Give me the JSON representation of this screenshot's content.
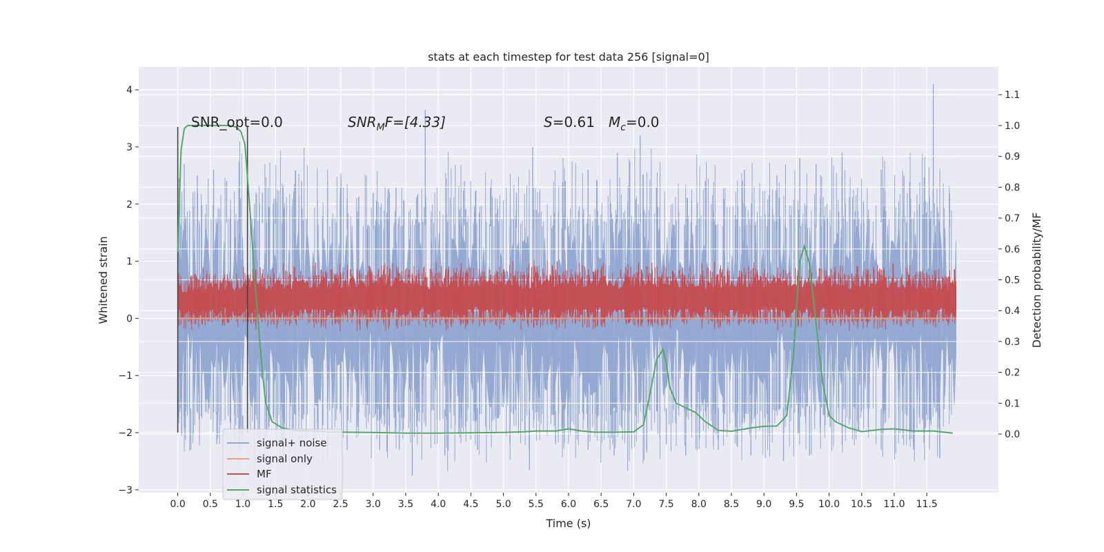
{
  "chart_data": {
    "type": "line",
    "title": "stats at each timestep for test data 256 [signal=0]",
    "xlabel": "Time (s)",
    "ylabel": "Whitened strain",
    "ylabel_right": "Detection probability/MF",
    "xlim": [
      -0.6,
      12.6
    ],
    "ylim": [
      -3.05,
      4.4
    ],
    "ylim_right": [
      -0.19,
      1.19
    ],
    "x_ticks": [
      "0.0",
      "0.5",
      "1.0",
      "1.5",
      "2.0",
      "2.5",
      "3.0",
      "3.5",
      "4.0",
      "4.5",
      "5.0",
      "5.5",
      "6.0",
      "6.5",
      "7.0",
      "7.5",
      "8.0",
      "8.5",
      "9.0",
      "9.5",
      "10.0",
      "10.5",
      "11.0",
      "11.5"
    ],
    "y_ticks": [
      "−3",
      "−2",
      "−1",
      "0",
      "1",
      "2",
      "3",
      "4"
    ],
    "y_ticks_right": [
      "0.0",
      "0.1",
      "0.2",
      "0.3",
      "0.4",
      "0.5",
      "0.6",
      "0.7",
      "0.8",
      "0.9",
      "1.0",
      "1.1"
    ],
    "grid": true,
    "legend_position": "lower-left",
    "annotations": {
      "snr_opt": "SNR_opt=0.0",
      "snr_mf": "SNR",
      "snr_mf_sub": "M",
      "snr_mf_rest": "F=[4.33]",
      "s_label": "S",
      "s_rest": "=0.61",
      "mc_label": "M",
      "mc_sub": "c",
      "mc_rest": "=0.0"
    },
    "vertical_markers": [
      0.0,
      1.07
    ],
    "series": [
      {
        "name": "signal+ noise",
        "color": "#92a8d1",
        "x_range": [
          0.0,
          11.95
        ],
        "band_ymin": [
          -1.55,
          -1.7,
          -1.6,
          -1.5,
          -1.6,
          -1.55,
          -1.65,
          -1.6,
          -1.55,
          -1.6,
          -1.5,
          -1.6,
          -1.55
        ],
        "band_ymax": [
          1.6,
          1.7,
          1.6,
          1.55,
          1.65,
          1.6,
          1.55,
          1.7,
          1.6,
          1.55,
          1.6,
          1.7,
          1.6
        ],
        "peaks_x": [
          0.1,
          0.3,
          0.55,
          0.75,
          0.95,
          1.3,
          1.5,
          1.9,
          2.3,
          2.6,
          3.0,
          3.35,
          3.8,
          4.4,
          4.8,
          5.2,
          5.45,
          5.95,
          6.3,
          6.75,
          7.1,
          7.35,
          8.1,
          8.7,
          9.2,
          9.55,
          9.8,
          10.2,
          10.8,
          11.15,
          11.6,
          11.85
        ],
        "peaks_y": [
          2.7,
          2.5,
          2.6,
          2.4,
          2.3,
          2.2,
          2.1,
          2.4,
          2.4,
          2.1,
          2.2,
          2.3,
          3.65,
          2.4,
          2.3,
          2.2,
          3.0,
          2.4,
          2.6,
          2.9,
          3.2,
          2.3,
          2.4,
          2.6,
          2.5,
          2.8,
          2.7,
          2.9,
          2.6,
          2.5,
          4.1,
          2.2
        ],
        "troughs_x": [
          0.2,
          0.6,
          1.0,
          1.6,
          2.1,
          2.6,
          3.1,
          3.4,
          3.6,
          4.1,
          4.6,
          5.1,
          5.4,
          5.8,
          6.3,
          6.7,
          7.2,
          7.5,
          7.8,
          8.3,
          8.8,
          9.3,
          9.7,
          10.2,
          10.8,
          11.3,
          11.7
        ],
        "troughs_y": [
          -2.3,
          -2.2,
          -2.1,
          -2.2,
          -2.1,
          -2.3,
          -2.3,
          -2.3,
          -2.75,
          -2.4,
          -2.3,
          -2.2,
          -2.65,
          -2.2,
          -2.3,
          -2.4,
          -2.3,
          -2.2,
          -2.4,
          -2.3,
          -2.4,
          -2.5,
          -2.4,
          -2.2,
          -2.3,
          -2.3,
          -2.45
        ]
      },
      {
        "name": "signal only",
        "color": "#e8a07e",
        "x": [
          0.0,
          11.95
        ],
        "y": [
          0.0,
          0.0
        ]
      },
      {
        "name": "MF",
        "color": "#c44e52",
        "x_range": [
          0.0,
          11.95
        ],
        "band_ymin": [
          0.0,
          0.02,
          0.0,
          0.02,
          0.0,
          0.01,
          0.0,
          0.02,
          0.0,
          0.01,
          0.0,
          0.02,
          0.0
        ],
        "band_ymax": [
          0.6,
          0.65,
          0.7,
          0.75,
          0.7,
          0.7,
          0.75,
          0.7,
          0.7,
          0.72,
          0.7,
          0.7,
          0.65
        ],
        "peaks_x": [
          0.55,
          1.2,
          2.2,
          2.65,
          3.55,
          4.9,
          5.5,
          6.8,
          7.7,
          8.35,
          9.3,
          10.8,
          11.5
        ],
        "peaks_y": [
          0.75,
          0.85,
          0.85,
          0.85,
          0.85,
          0.8,
          0.8,
          0.85,
          0.85,
          0.8,
          0.85,
          0.85,
          0.8
        ]
      },
      {
        "name": "signal statistics",
        "color": "#55a868",
        "axis": "right",
        "x": [
          0.0,
          0.05,
          0.1,
          0.15,
          0.25,
          0.4,
          0.6,
          0.8,
          0.9,
          0.97,
          1.03,
          1.1,
          1.2,
          1.3,
          1.35,
          1.45,
          1.6,
          1.8,
          2.0,
          2.3,
          2.6,
          3.0,
          3.5,
          4.0,
          4.5,
          5.0,
          5.3,
          5.5,
          5.8,
          6.0,
          6.2,
          6.4,
          6.7,
          7.0,
          7.15,
          7.25,
          7.35,
          7.45,
          7.5,
          7.55,
          7.65,
          7.8,
          7.95,
          8.1,
          8.3,
          8.5,
          8.8,
          9.0,
          9.2,
          9.35,
          9.45,
          9.55,
          9.62,
          9.7,
          9.8,
          9.9,
          10.0,
          10.1,
          10.3,
          10.5,
          10.8,
          11.0,
          11.3,
          11.6,
          11.9
        ],
        "y": [
          0.59,
          0.92,
          0.99,
          1.0,
          1.0,
          1.0,
          1.0,
          1.0,
          0.995,
          0.98,
          0.94,
          0.75,
          0.45,
          0.2,
          0.1,
          0.04,
          0.02,
          0.012,
          0.011,
          0.007,
          0.006,
          0.005,
          0.003,
          0.003,
          0.004,
          0.005,
          0.007,
          0.01,
          0.01,
          0.017,
          0.01,
          0.006,
          0.006,
          0.007,
          0.03,
          0.13,
          0.24,
          0.275,
          0.23,
          0.155,
          0.1,
          0.085,
          0.07,
          0.04,
          0.012,
          0.009,
          0.02,
          0.025,
          0.026,
          0.06,
          0.25,
          0.56,
          0.61,
          0.55,
          0.36,
          0.17,
          0.06,
          0.04,
          0.02,
          0.008,
          0.015,
          0.017,
          0.01,
          0.01,
          0.003
        ]
      }
    ]
  }
}
